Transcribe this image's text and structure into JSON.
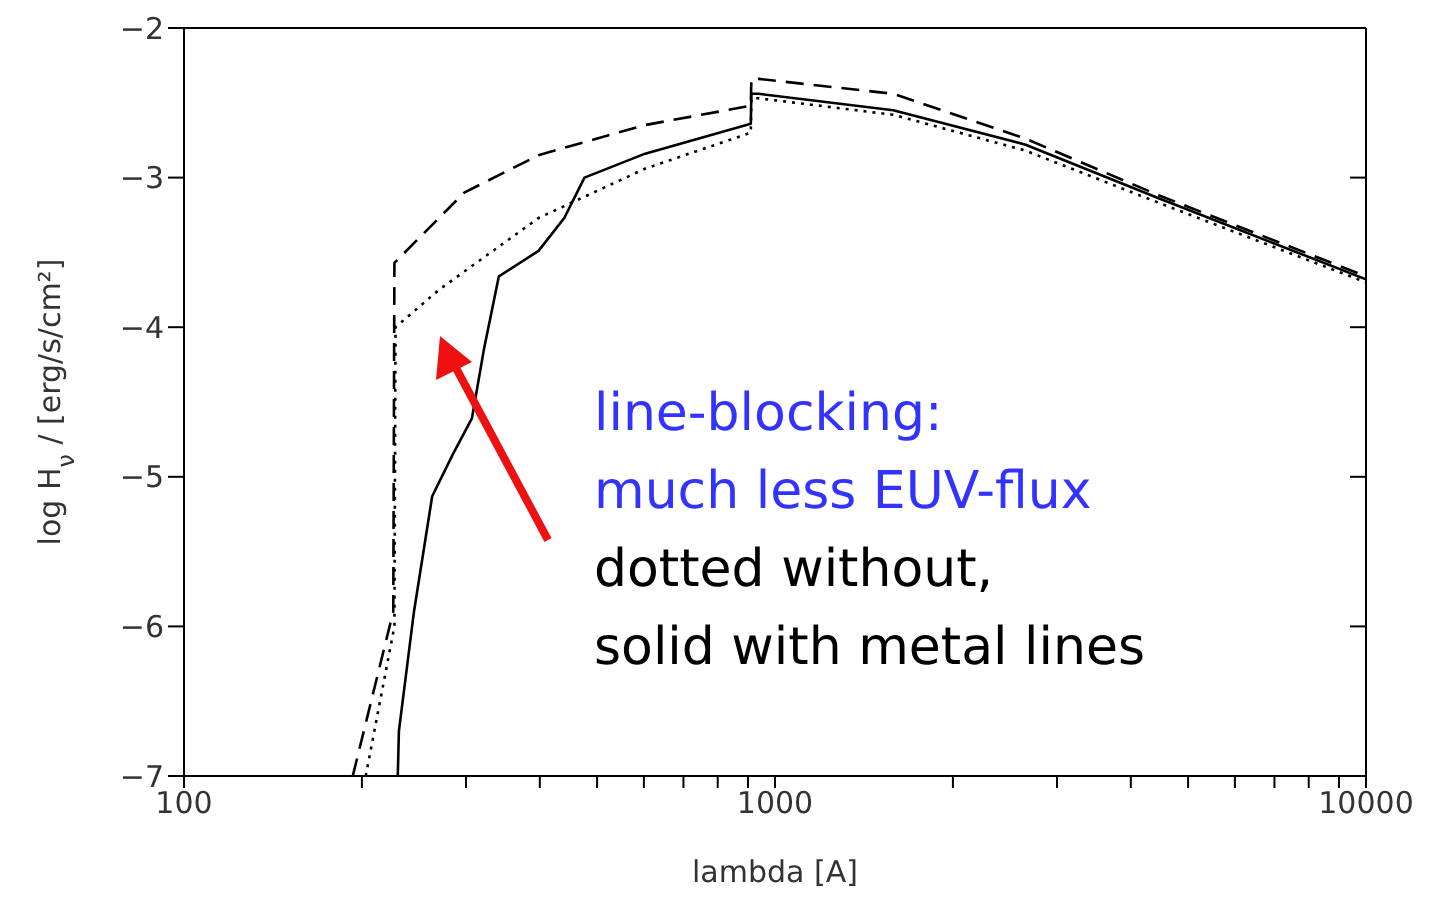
{
  "chart_data": {
    "type": "line",
    "xlabel": "lambda [A]",
    "ylabel": "log H$_{ν}$ / [erg/s/cm²]",
    "log": "x",
    "xlim": [
      100,
      10000
    ],
    "ylim": [
      -7,
      -2
    ],
    "xticks": [
      100,
      {
        "value": 200,
        "label": null
      },
      {
        "value": 300,
        "label": null
      },
      {
        "value": 400,
        "label": null
      },
      {
        "value": 500,
        "label": null
      },
      {
        "value": 600,
        "label": null
      },
      {
        "value": 700,
        "label": null
      },
      {
        "value": 800,
        "label": null
      },
      {
        "value": 900,
        "label": null
      },
      1000,
      {
        "value": 2000,
        "label": null
      },
      {
        "value": 3000,
        "label": null
      },
      {
        "value": 4000,
        "label": null
      },
      {
        "value": 5000,
        "label": null
      },
      {
        "value": 6000,
        "label": null
      },
      {
        "value": 7000,
        "label": null
      },
      {
        "value": 8000,
        "label": null
      },
      {
        "value": 9000,
        "label": null
      },
      10000
    ],
    "yticks": [
      -7,
      -6,
      -5,
      -4,
      -3,
      -2
    ],
    "marker": "none",
    "series": [
      {
        "color": "#000000",
        "line_style": "dashed",
        "x": [
          193,
          226,
          227,
          298,
          398,
          600,
          910,
          912,
          939,
          1585,
          2655,
          4470,
          10000
        ],
        "values": [
          -7,
          -5.9,
          -3.57,
          -3.1,
          -2.85,
          -2.65,
          -2.52,
          -2.34,
          -2.34,
          -2.44,
          -2.74,
          -3.12,
          -3.66
        ]
      },
      {
        "color": "#000000",
        "line_style": "dotted",
        "x": [
          203,
          227,
          228,
          270,
          398,
          603,
          910,
          912,
          939,
          1585,
          2655,
          4470,
          10000
        ],
        "values": [
          -7,
          -6.0,
          -4.0,
          -3.75,
          -3.27,
          -2.94,
          -2.7,
          -2.47,
          -2.47,
          -2.58,
          -2.82,
          -3.17,
          -3.7
        ]
      },
      {
        "color": "#000000",
        "line_style": "solid",
        "x": [
          230,
          231,
          245,
          263,
          285,
          307,
          322,
          341,
          398,
          440,
          476,
          603,
          910,
          912,
          939,
          1585,
          2655,
          4470,
          10000
        ],
        "values": [
          -7,
          -6.7,
          -5.9,
          -5.13,
          -4.85,
          -4.61,
          -4.14,
          -3.66,
          -3.49,
          -3.27,
          -3.0,
          -2.84,
          -2.64,
          -2.44,
          -2.44,
          -2.55,
          -2.78,
          -3.14,
          -3.68
        ]
      }
    ],
    "annotations": [
      "line-blocking:\nmuch less EUV-flux",
      "dotted without,\nsolid with metal lines"
    ]
  }
}
